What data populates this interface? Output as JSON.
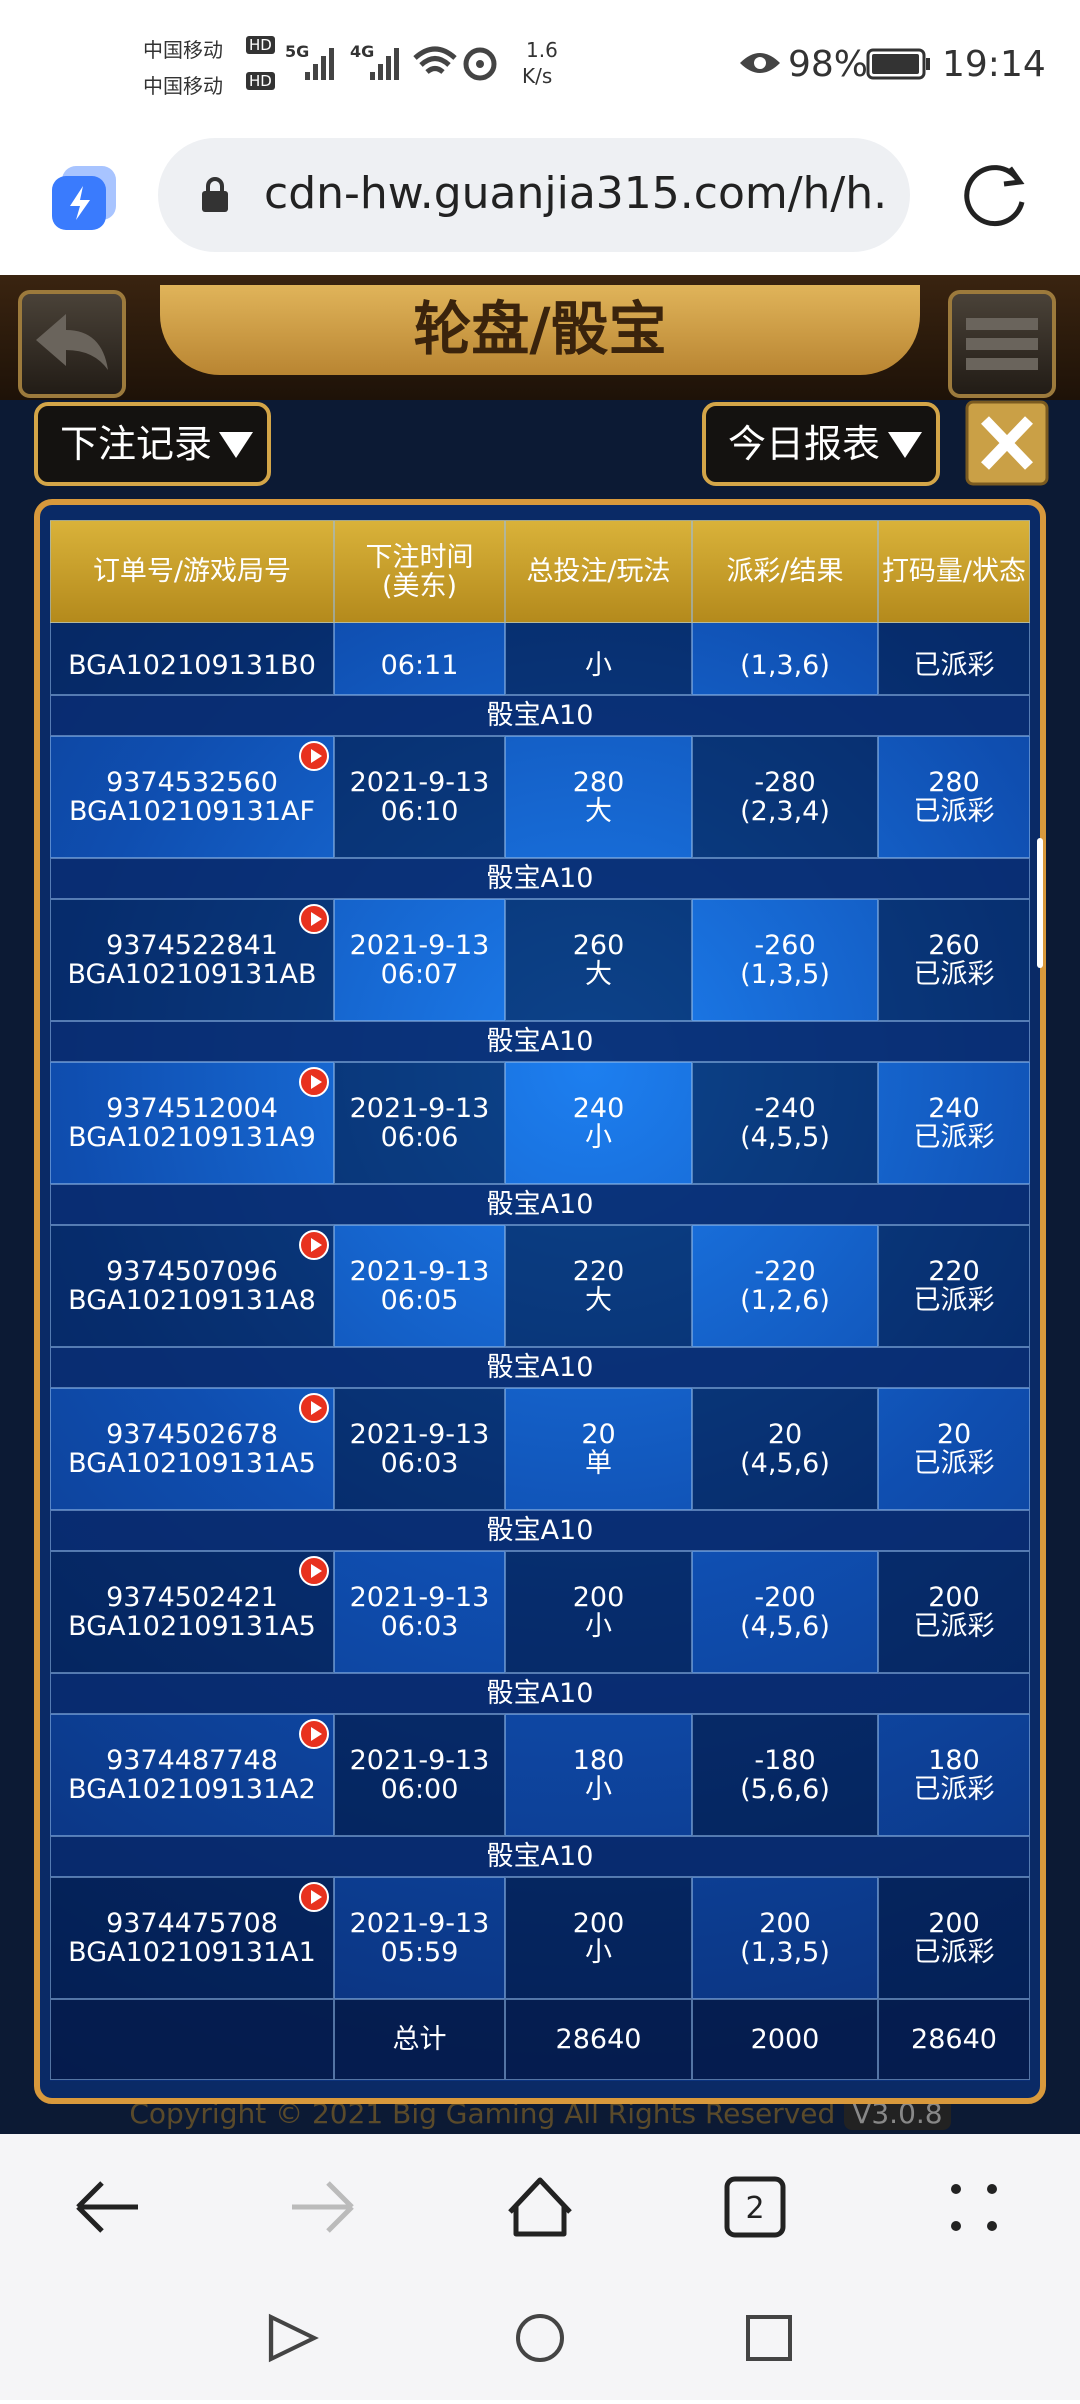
{
  "status_bar": {
    "carrier_1": "中国移动",
    "carrier_2": "中国移动",
    "hd_1": "HD",
    "hd_2": "HD",
    "net_1": "5G",
    "net_2": "4G",
    "speed": "1.6",
    "speed_unit": "K/s",
    "battery": "98%",
    "time": "19:14"
  },
  "browser": {
    "url": "cdn-hw.guanjia315.com/h/h.",
    "tab_count": "2"
  },
  "game": {
    "title": "轮盘/骰宝",
    "left_button": "下注记录",
    "right_button": "今日报表",
    "copyright": "Copyright © 2021 Big Gaming All Rights Reserved",
    "version": "V3.0.8"
  },
  "table": {
    "headers": [
      "订单号/游戏局号",
      "下注时间\n(美东)",
      "总投注/玩法",
      "派彩/结果",
      "打码量/状态"
    ],
    "partial_row": [
      "BGA102109131B0",
      "06:11",
      "小",
      "(1,3,6)",
      "已派彩"
    ],
    "rows": [
      {
        "game": "骰宝A10",
        "order": "9374532560",
        "round": "BGA102109131AF",
        "date": "2021-9-13",
        "time": "06:10",
        "bet": 280,
        "play": "大",
        "payout": -280,
        "result": "(2,3,4)",
        "turnover": 280,
        "status": "已派彩"
      },
      {
        "game": "骰宝A10",
        "order": "9374522841",
        "round": "BGA102109131AB",
        "date": "2021-9-13",
        "time": "06:07",
        "bet": 260,
        "play": "大",
        "payout": -260,
        "result": "(1,3,5)",
        "turnover": 260,
        "status": "已派彩"
      },
      {
        "game": "骰宝A10",
        "order": "9374512004",
        "round": "BGA102109131A9",
        "date": "2021-9-13",
        "time": "06:06",
        "bet": 240,
        "play": "小",
        "payout": -240,
        "result": "(4,5,5)",
        "turnover": 240,
        "status": "已派彩"
      },
      {
        "game": "骰宝A10",
        "order": "9374507096",
        "round": "BGA102109131A8",
        "date": "2021-9-13",
        "time": "06:05",
        "bet": 220,
        "play": "大",
        "payout": -220,
        "result": "(1,2,6)",
        "turnover": 220,
        "status": "已派彩"
      },
      {
        "game": "骰宝A10",
        "order": "9374502678",
        "round": "BGA102109131A5",
        "date": "2021-9-13",
        "time": "06:03",
        "bet": 20,
        "play": "单",
        "payout": 20,
        "result": "(4,5,6)",
        "turnover": 20,
        "status": "已派彩"
      },
      {
        "game": "骰宝A10",
        "order": "9374502421",
        "round": "BGA102109131A5",
        "date": "2021-9-13",
        "time": "06:03",
        "bet": 200,
        "play": "小",
        "payout": -200,
        "result": "(4,5,6)",
        "turnover": 200,
        "status": "已派彩"
      },
      {
        "game": "骰宝A10",
        "order": "9374487748",
        "round": "BGA102109131A2",
        "date": "2021-9-13",
        "time": "06:00",
        "bet": 180,
        "play": "小",
        "payout": -180,
        "result": "(5,6,6)",
        "turnover": 180,
        "status": "已派彩"
      },
      {
        "game": "骰宝A10",
        "order": "9374475708",
        "round": "BGA102109131A1",
        "date": "2021-9-13",
        "time": "05:59",
        "bet": 200,
        "play": "小",
        "payout": 200,
        "result": "(1,3,5)",
        "turnover": 200,
        "status": "已派彩"
      }
    ],
    "total": {
      "label": "总计",
      "bet": 28640,
      "payout": 2000,
      "turnover": 28640
    }
  }
}
